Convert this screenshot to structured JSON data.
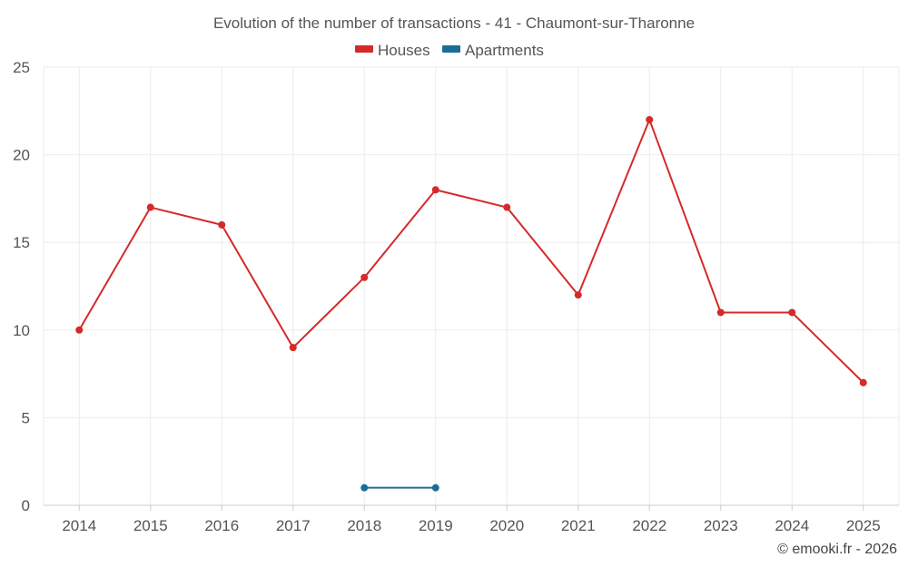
{
  "chart_data": {
    "type": "line",
    "title": "Evolution of the number of transactions - 41 - Chaumont-sur-Tharonne",
    "x": [
      "2014",
      "2015",
      "2016",
      "2017",
      "2018",
      "2019",
      "2020",
      "2021",
      "2022",
      "2023",
      "2024",
      "2025"
    ],
    "series": [
      {
        "name": "Houses",
        "color": "#d42a2a",
        "values": [
          10,
          17,
          16,
          9,
          13,
          18,
          17,
          12,
          22,
          11,
          11,
          7
        ]
      },
      {
        "name": "Apartments",
        "color": "#1a6c99",
        "values": [
          null,
          null,
          null,
          null,
          1,
          1,
          null,
          null,
          null,
          null,
          null,
          null
        ]
      }
    ],
    "yticks": [
      "0",
      "5",
      "10",
      "15",
      "20",
      "25"
    ],
    "ylim": [
      0,
      25
    ],
    "xlabel": "",
    "ylabel": "",
    "grid": true,
    "legend_position": "top-center"
  },
  "footer": {
    "credit": "© emooki.fr - 2026"
  }
}
